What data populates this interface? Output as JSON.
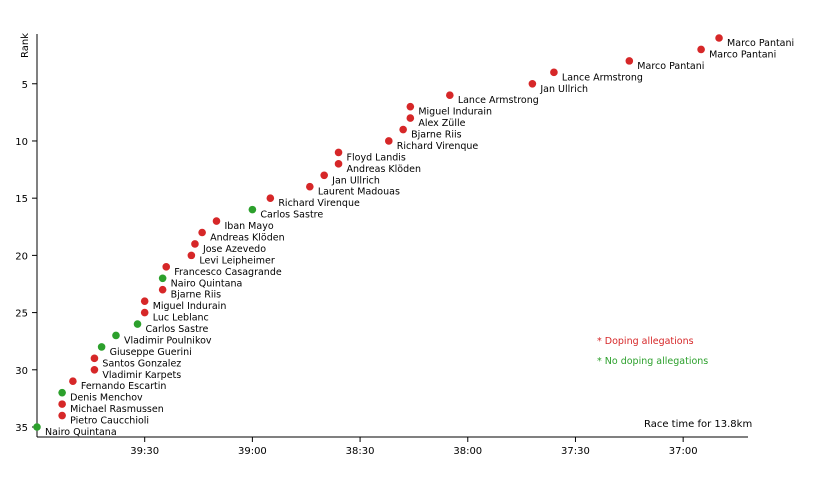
{
  "chart_data": {
    "type": "scatter",
    "title": "",
    "xlabel": "",
    "ylabel": "Rank",
    "x_unit": "race time (m:ss), reversed axis",
    "xlim": [
      "40:00",
      "36:45"
    ],
    "ylim": [
      0,
      36
    ],
    "x_ticks": [
      "39:30",
      "39:00",
      "38:30",
      "38:00",
      "37:30",
      "37:00"
    ],
    "y_ticks": [
      5,
      10,
      15,
      20,
      25,
      30,
      35
    ],
    "note": "Race time for 13.8km",
    "legend": [
      {
        "label": "* Doping allegations",
        "color": "#d62728",
        "key": "doping"
      },
      {
        "label": "* No doping allegations",
        "color": "#2ca02c",
        "key": "clean"
      }
    ],
    "legend_position": "bottom-right",
    "colors": {
      "doping": "#d62728",
      "clean": "#2ca02c"
    },
    "points": [
      {
        "rank": 1,
        "time": "36:50",
        "name": "Marco Pantani",
        "doping": true
      },
      {
        "rank": 2,
        "time": "36:55",
        "name": "Marco Pantani",
        "doping": true
      },
      {
        "rank": 3,
        "time": "37:15",
        "name": "Marco Pantani",
        "doping": true
      },
      {
        "rank": 4,
        "time": "37:36",
        "name": "Lance Armstrong",
        "doping": true
      },
      {
        "rank": 5,
        "time": "37:42",
        "name": "Jan Ullrich",
        "doping": true
      },
      {
        "rank": 6,
        "time": "38:05",
        "name": "Lance Armstrong",
        "doping": true
      },
      {
        "rank": 7,
        "time": "38:16",
        "name": "Miguel Indurain",
        "doping": true
      },
      {
        "rank": 8,
        "time": "38:16",
        "name": "Alex Zülle",
        "doping": true
      },
      {
        "rank": 9,
        "time": "38:18",
        "name": "Bjarne Riis",
        "doping": true
      },
      {
        "rank": 10,
        "time": "38:22",
        "name": "Richard Virenque",
        "doping": true
      },
      {
        "rank": 11,
        "time": "38:36",
        "name": "Floyd Landis",
        "doping": true
      },
      {
        "rank": 12,
        "time": "38:36",
        "name": "Andreas Klöden",
        "doping": true
      },
      {
        "rank": 13,
        "time": "38:40",
        "name": "Jan Ullrich",
        "doping": true
      },
      {
        "rank": 14,
        "time": "38:44",
        "name": "Laurent Madouas",
        "doping": true
      },
      {
        "rank": 15,
        "time": "38:55",
        "name": "Richard Virenque",
        "doping": true
      },
      {
        "rank": 16,
        "time": "39:00",
        "name": "Carlos Sastre",
        "doping": false
      },
      {
        "rank": 17,
        "time": "39:10",
        "name": "Iban Mayo",
        "doping": true
      },
      {
        "rank": 18,
        "time": "39:14",
        "name": "Andreas Klöden",
        "doping": true
      },
      {
        "rank": 19,
        "time": "39:16",
        "name": "Jose Azevedo",
        "doping": true
      },
      {
        "rank": 20,
        "time": "39:17",
        "name": "Levi Leipheimer",
        "doping": true
      },
      {
        "rank": 21,
        "time": "39:24",
        "name": "Francesco Casagrande",
        "doping": true
      },
      {
        "rank": 22,
        "time": "39:25",
        "name": "Nairo Quintana",
        "doping": false
      },
      {
        "rank": 23,
        "time": "39:25",
        "name": "Bjarne Riis",
        "doping": true
      },
      {
        "rank": 24,
        "time": "39:30",
        "name": "Miguel Indurain",
        "doping": true
      },
      {
        "rank": 25,
        "time": "39:30",
        "name": "Luc Leblanc",
        "doping": true
      },
      {
        "rank": 26,
        "time": "39:32",
        "name": "Carlos Sastre",
        "doping": false
      },
      {
        "rank": 27,
        "time": "39:38",
        "name": "Vladimir Poulnikov",
        "doping": false
      },
      {
        "rank": 28,
        "time": "39:42",
        "name": "Giuseppe Guerini",
        "doping": false
      },
      {
        "rank": 29,
        "time": "39:44",
        "name": "Santos Gonzalez",
        "doping": true
      },
      {
        "rank": 30,
        "time": "39:44",
        "name": "Vladimir Karpets",
        "doping": true
      },
      {
        "rank": 31,
        "time": "39:50",
        "name": "Fernando Escartin",
        "doping": true
      },
      {
        "rank": 32,
        "time": "39:53",
        "name": "Denis Menchov",
        "doping": false
      },
      {
        "rank": 33,
        "time": "39:53",
        "name": "Michael Rasmussen",
        "doping": true
      },
      {
        "rank": 34,
        "time": "39:53",
        "name": "Pietro Caucchioli",
        "doping": true
      },
      {
        "rank": 35,
        "time": "40:00",
        "name": "Nairo Quintana",
        "doping": false
      }
    ]
  }
}
